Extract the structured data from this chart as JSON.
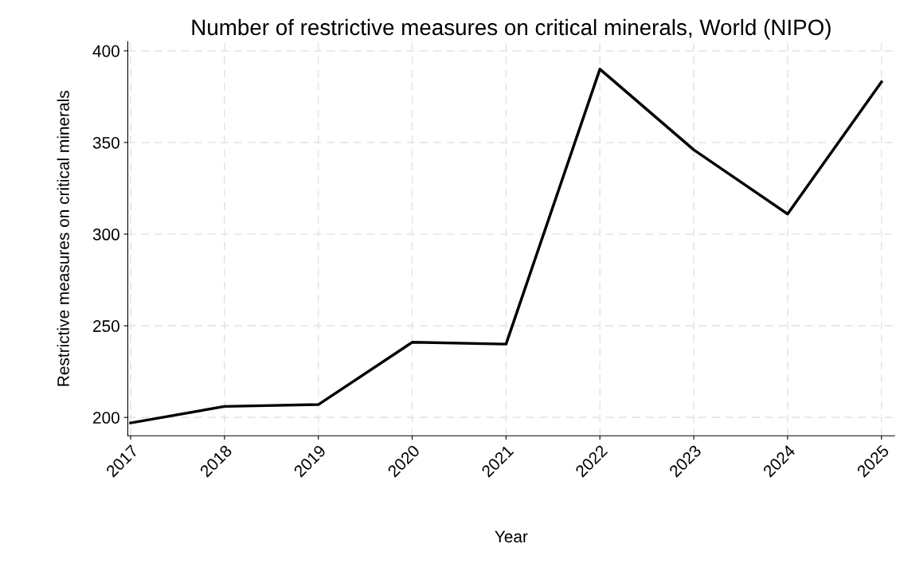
{
  "chart_data": {
    "type": "line",
    "title": "Number of restrictive measures on critical minerals, World (NIPO)",
    "xlabel": "Year",
    "ylabel": "Restrictive measures on critical minerals",
    "x": [
      2017,
      2018,
      2019,
      2020,
      2021,
      2022,
      2023,
      2024,
      2025
    ],
    "series": [
      {
        "color": "#000000",
        "values": [
          197,
          206,
          207,
          241,
          240,
          390,
          346,
          311,
          383
        ]
      }
    ],
    "xlim": [
      2016.97,
      2025.14
    ],
    "xticks": [
      2017,
      2018,
      2019,
      2020,
      2021,
      2022,
      2023,
      2024,
      2025
    ],
    "ylim": [
      190,
      405
    ],
    "yticks": [
      200,
      250,
      300,
      350,
      400
    ],
    "grid": true,
    "legend": false,
    "marker": "none",
    "line_style": "solid"
  }
}
